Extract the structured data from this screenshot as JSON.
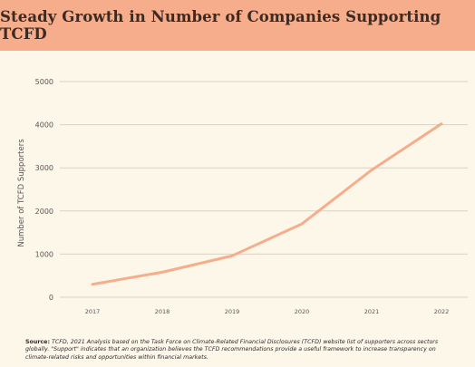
{
  "header": {
    "title": "Steady Growth in Number of Companies Supporting TCFD"
  },
  "chart_data": {
    "type": "line",
    "title": "Steady Growth in Number of Companies Supporting TCFD",
    "xlabel": "",
    "ylabel": "Number of TCFD Supporters",
    "categories": [
      "2017",
      "2018",
      "2019",
      "2020",
      "2021",
      "2022"
    ],
    "series": [
      {
        "values": [
          300,
          580,
          960,
          1700,
          2950,
          4020
        ]
      }
    ],
    "ylim": [
      0,
      5000
    ],
    "yticks": [
      0,
      1000,
      2000,
      3000,
      4000,
      5000
    ],
    "grid": true,
    "line_color": "#f5ad8c"
  },
  "footer": {
    "source_label": "Source:",
    "source_text": " TCFD, 2021 Analysis based on the Task Force on Climate-Related Financial Disclosures (TCFD) website list of supporters across sectors globally. \"Support\" indicates that an organization believes the TCFD recommendations provide a useful framework to increase transparency on climate-related risks and opportunities within financial markets."
  }
}
